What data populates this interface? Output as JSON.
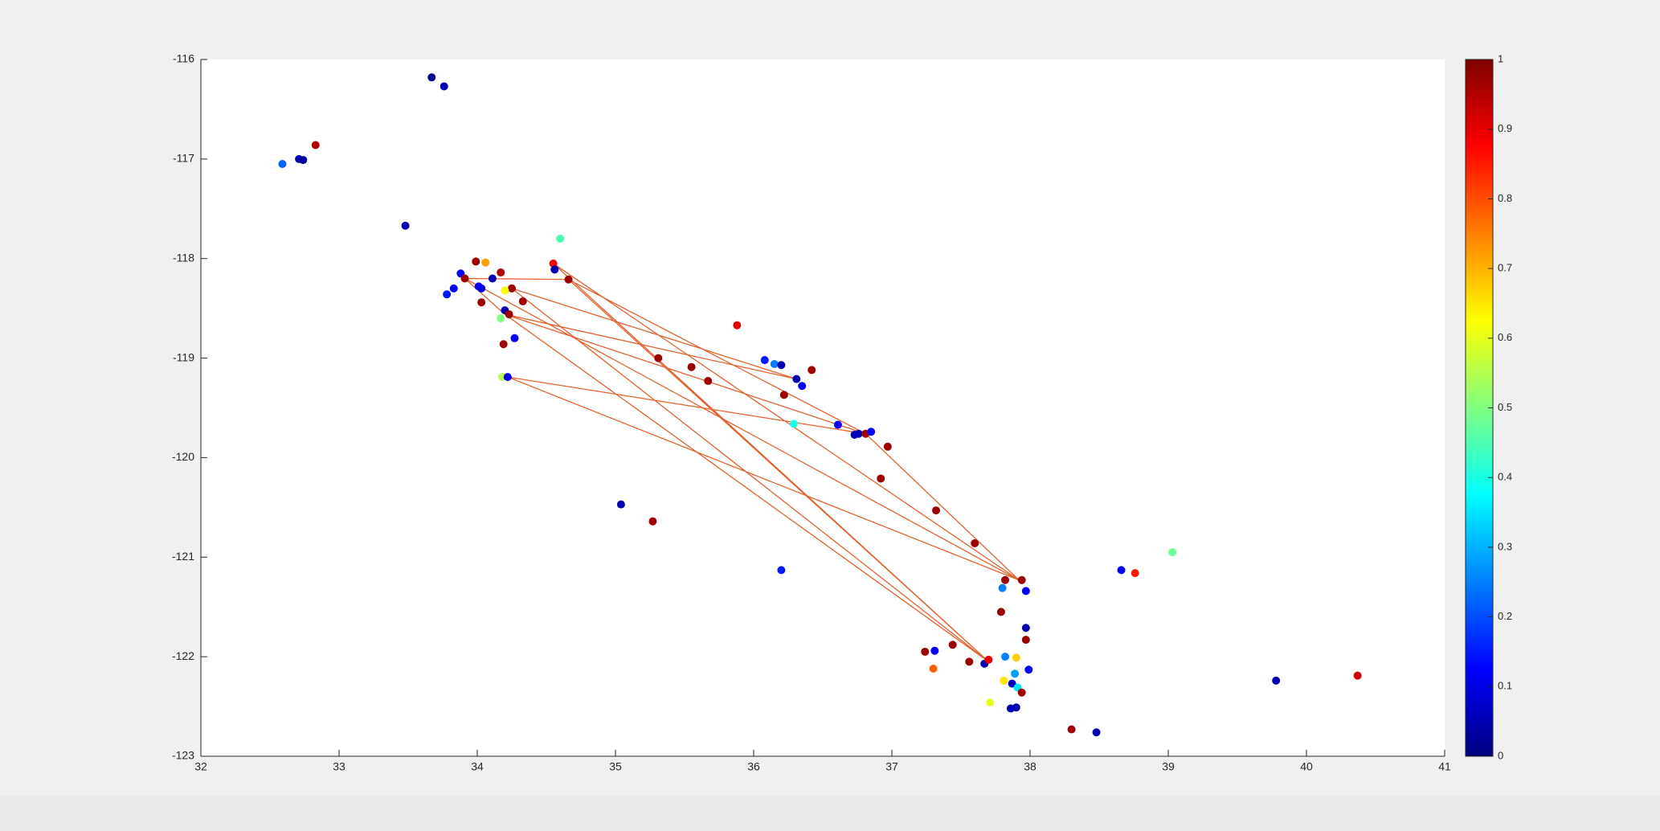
{
  "chart_data": {
    "type": "scatter",
    "xlim": [
      32,
      41
    ],
    "ylim": [
      -123,
      -116
    ],
    "xticks": [
      32,
      33,
      34,
      35,
      36,
      37,
      38,
      39,
      40,
      41
    ],
    "yticks": [
      -123,
      -122,
      -121,
      -120,
      -119,
      -118,
      -117,
      -116
    ],
    "colormap": "jet",
    "clim": [
      0,
      1
    ],
    "cticks": [
      0,
      0.1,
      0.2,
      0.3,
      0.4,
      0.5,
      0.6,
      0.7,
      0.8,
      0.9,
      1
    ],
    "x": [
      33.67,
      33.76,
      32.83,
      32.59,
      32.71,
      32.74,
      33.48,
      34.6,
      33.99,
      34.06,
      34.17,
      34.55,
      34.56,
      34.66,
      33.88,
      33.91,
      34.11,
      34.01,
      34.03,
      33.83,
      33.78,
      34.25,
      34.2,
      34.03,
      34.33,
      34.2,
      34.23,
      34.17,
      34.27,
      34.19,
      34.18,
      34.22,
      35.88,
      35.31,
      35.55,
      35.67,
      36.08,
      36.15,
      36.2,
      36.42,
      36.31,
      36.35,
      36.22,
      36.29,
      36.61,
      36.73,
      36.76,
      36.81,
      36.85,
      36.97,
      36.92,
      37.32,
      35.04,
      35.27,
      37.6,
      36.2,
      37.82,
      37.94,
      37.8,
      37.97,
      37.79,
      37.97,
      37.97,
      37.24,
      37.31,
      37.44,
      37.56,
      37.67,
      37.7,
      37.82,
      37.9,
      37.3,
      37.99,
      37.89,
      37.81,
      37.87,
      37.91,
      37.94,
      37.71,
      37.86,
      37.9,
      38.3,
      38.48,
      38.66,
      38.76,
      39.03,
      39.78,
      40.37
    ],
    "y": [
      -116.18,
      -116.27,
      -116.86,
      -117.05,
      -117.0,
      -117.01,
      -117.67,
      -117.8,
      -118.03,
      -118.04,
      -118.14,
      -118.05,
      -118.11,
      -118.21,
      -118.15,
      -118.2,
      -118.2,
      -118.28,
      -118.3,
      -118.3,
      -118.36,
      -118.3,
      -118.32,
      -118.44,
      -118.43,
      -118.52,
      -118.56,
      -118.6,
      -118.8,
      -118.86,
      -119.19,
      -119.19,
      -118.67,
      -119.0,
      -119.09,
      -119.23,
      -119.02,
      -119.06,
      -119.07,
      -119.12,
      -119.21,
      -119.28,
      -119.37,
      -119.66,
      -119.67,
      -119.77,
      -119.76,
      -119.76,
      -119.74,
      -119.89,
      -120.21,
      -120.53,
      -120.47,
      -120.64,
      -120.86,
      -121.13,
      -121.23,
      -121.23,
      -121.31,
      -121.34,
      -121.55,
      -121.71,
      -121.83,
      -121.95,
      -121.94,
      -121.88,
      -122.05,
      -122.07,
      -122.03,
      -122.0,
      -122.01,
      -122.12,
      -122.13,
      -122.17,
      -122.24,
      -122.27,
      -122.31,
      -122.36,
      -122.46,
      -122.52,
      -122.51,
      -122.73,
      -122.76,
      -121.13,
      -121.16,
      -120.95,
      -122.24,
      -122.19
    ],
    "c": [
      0.02,
      0.05,
      0.95,
      0.22,
      0.05,
      0.03,
      0.05,
      0.45,
      0.97,
      0.72,
      0.95,
      0.88,
      0.05,
      0.97,
      0.12,
      0.97,
      0.05,
      0.12,
      0.1,
      0.12,
      0.15,
      0.97,
      0.62,
      0.97,
      0.97,
      0.05,
      0.97,
      0.5,
      0.12,
      0.97,
      0.55,
      0.1,
      0.9,
      0.97,
      0.97,
      0.97,
      0.15,
      0.25,
      0.05,
      0.97,
      0.05,
      0.12,
      0.97,
      0.4,
      0.12,
      0.05,
      0.05,
      0.97,
      0.12,
      0.97,
      0.97,
      0.97,
      0.05,
      0.97,
      0.97,
      0.15,
      0.97,
      0.97,
      0.25,
      0.12,
      0.97,
      0.05,
      0.97,
      0.97,
      0.12,
      0.97,
      0.97,
      0.05,
      0.9,
      0.25,
      0.67,
      0.78,
      0.12,
      0.28,
      0.65,
      0.05,
      0.35,
      0.97,
      0.6,
      0.05,
      0.05,
      0.97,
      0.05,
      0.12,
      0.85,
      0.48,
      0.05,
      0.92
    ],
    "lines": {
      "type": "line",
      "color": "#e2622d",
      "x": [
        33.91,
        34.66,
        36.81,
        37.92,
        34.55,
        37.7,
        34.25,
        36.31,
        34.2,
        36.81,
        34.22,
        37.92,
        33.91,
        34.2,
        37.7,
        34.66,
        33.91
      ],
      "y": [
        -118.2,
        -118.21,
        -119.76,
        -121.23,
        -118.05,
        -122.05,
        -118.3,
        -119.21,
        -118.56,
        -119.76,
        -119.19,
        -121.23,
        -118.2,
        -118.56,
        -122.05,
        -118.21,
        -118.2
      ]
    }
  }
}
